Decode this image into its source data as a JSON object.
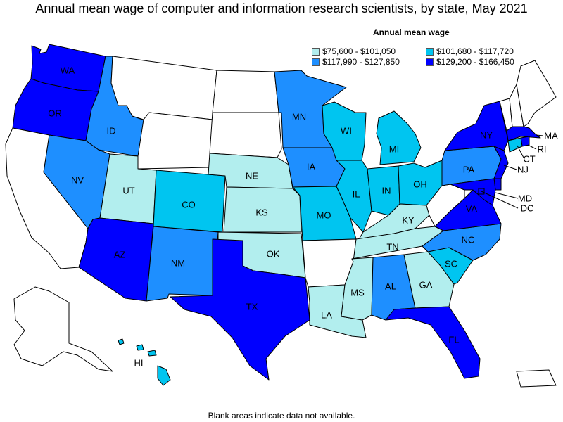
{
  "title": "Annual mean wage of computer and information research scientists, by state, May 2021",
  "legend": {
    "title": "Annual mean wage",
    "items": [
      {
        "label": "$75,600 - $101,050",
        "color": "#b2eeee"
      },
      {
        "label": "$101,680 - $117,720",
        "color": "#00c5f0"
      },
      {
        "label": "$117,990 - $127,850",
        "color": "#1e8fff"
      },
      {
        "label": "$129,200 - $166,450",
        "color": "#0000ff"
      }
    ]
  },
  "footnote": "Blank areas indicate data not available.",
  "colors": {
    "blank": "#ffffff",
    "border": "#000000"
  },
  "states": {
    "WA": {
      "label": "WA",
      "bin": 3
    },
    "OR": {
      "label": "OR",
      "bin": 3
    },
    "CA": {
      "label": "",
      "bin": null
    },
    "ID": {
      "label": "ID",
      "bin": 2
    },
    "NV": {
      "label": "NV",
      "bin": 2
    },
    "MT": {
      "label": "",
      "bin": null
    },
    "WY": {
      "label": "",
      "bin": null
    },
    "UT": {
      "label": "UT",
      "bin": 0
    },
    "AZ": {
      "label": "AZ",
      "bin": 3
    },
    "CO": {
      "label": "CO",
      "bin": 1
    },
    "NM": {
      "label": "NM",
      "bin": 2
    },
    "ND": {
      "label": "",
      "bin": null
    },
    "SD": {
      "label": "",
      "bin": null
    },
    "NE": {
      "label": "NE",
      "bin": 0
    },
    "KS": {
      "label": "KS",
      "bin": 0
    },
    "OK": {
      "label": "OK",
      "bin": 0
    },
    "TX": {
      "label": "TX",
      "bin": 3
    },
    "MN": {
      "label": "MN",
      "bin": 2
    },
    "IA": {
      "label": "IA",
      "bin": 2
    },
    "MO": {
      "label": "MO",
      "bin": 1
    },
    "AR": {
      "label": "",
      "bin": null
    },
    "LA": {
      "label": "LA",
      "bin": 0
    },
    "WI": {
      "label": "WI",
      "bin": 1
    },
    "IL": {
      "label": "IL",
      "bin": 1
    },
    "MI": {
      "label": "MI",
      "bin": 1
    },
    "IN": {
      "label": "IN",
      "bin": 1
    },
    "OH": {
      "label": "OH",
      "bin": 1
    },
    "KY": {
      "label": "KY",
      "bin": 0
    },
    "TN": {
      "label": "TN",
      "bin": 0
    },
    "MS": {
      "label": "MS",
      "bin": 0
    },
    "AL": {
      "label": "AL",
      "bin": 2
    },
    "GA": {
      "label": "GA",
      "bin": 0
    },
    "FL": {
      "label": "FL",
      "bin": 3
    },
    "SC": {
      "label": "SC",
      "bin": 1
    },
    "NC": {
      "label": "NC",
      "bin": 2
    },
    "VA": {
      "label": "VA",
      "bin": 3
    },
    "WV": {
      "label": "",
      "bin": null
    },
    "PA": {
      "label": "PA",
      "bin": 2
    },
    "NY": {
      "label": "NY",
      "bin": 3
    },
    "VT": {
      "label": "",
      "bin": null
    },
    "NH": {
      "label": "",
      "bin": null
    },
    "ME": {
      "label": "",
      "bin": null
    },
    "MA": {
      "label": "MA",
      "bin": 3
    },
    "RI": {
      "label": "RI",
      "bin": 3
    },
    "CT": {
      "label": "CT",
      "bin": 1
    },
    "NJ": {
      "label": "NJ",
      "bin": 3
    },
    "DE": {
      "label": "",
      "bin": 3
    },
    "MD": {
      "label": "MD",
      "bin": 3
    },
    "DC": {
      "label": "DC",
      "bin": 3
    },
    "AK": {
      "label": "",
      "bin": null
    },
    "HI": {
      "label": "HI",
      "bin": 1
    },
    "PR": {
      "label": "",
      "bin": null
    }
  }
}
